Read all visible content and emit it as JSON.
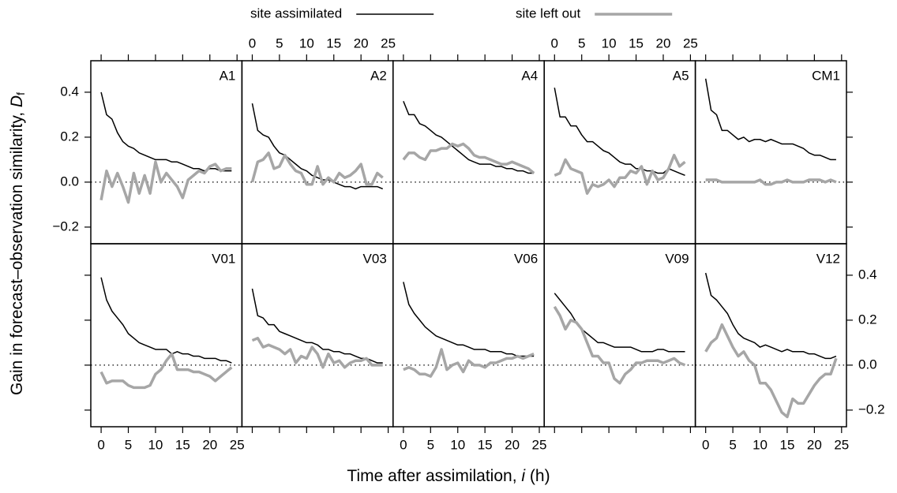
{
  "chart_data": {
    "type": "line",
    "series": [
      {
        "name": "site assimilated",
        "color": "#000000",
        "width": 1.5
      },
      {
        "name": "site left out",
        "color": "#a6a6a6",
        "width": 3.5
      }
    ],
    "xlabel": {
      "text": "Time after assimilation,",
      "var": "i",
      "unit": "(h)"
    },
    "ylabel": {
      "text": "Gain in forecast–observation similarity,",
      "var": "D",
      "sub": "f"
    },
    "x": [
      0,
      1,
      2,
      3,
      4,
      5,
      6,
      7,
      8,
      9,
      10,
      11,
      12,
      13,
      14,
      15,
      16,
      17,
      18,
      19,
      20,
      21,
      22,
      23,
      24
    ],
    "xlim": [
      -1.9,
      25.9
    ],
    "xticks": [
      0,
      5,
      10,
      15,
      20,
      25
    ],
    "ylim": [
      -0.274,
      0.54
    ],
    "yticks": [
      {
        "value": -0.2,
        "label": "−0.2"
      },
      {
        "value": 0,
        "label": "0.0"
      },
      0.2,
      0.4
    ],
    "panels": [
      {
        "title": "A1",
        "values": [
          [
            0.4,
            0.3,
            0.28,
            0.22,
            0.18,
            0.16,
            0.15,
            0.13,
            0.12,
            0.11,
            0.1,
            0.1,
            0.1,
            0.09,
            0.09,
            0.08,
            0.07,
            0.06,
            0.06,
            0.05,
            0.06,
            0.06,
            0.05,
            0.05,
            0.05
          ],
          [
            -0.08,
            0.05,
            -0.02,
            0.04,
            -0.02,
            -0.09,
            0.04,
            -0.05,
            0.03,
            -0.05,
            0.09,
            0.0,
            0.04,
            0.01,
            -0.02,
            -0.07,
            0.01,
            0.03,
            0.05,
            0.04,
            0.07,
            0.08,
            0.05,
            0.06,
            0.06
          ]
        ]
      },
      {
        "title": "A2",
        "values": [
          [
            0.35,
            0.23,
            0.21,
            0.2,
            0.16,
            0.13,
            0.12,
            0.1,
            0.08,
            0.06,
            0.05,
            0.03,
            0.02,
            0.01,
            0.01,
            0.0,
            -0.01,
            -0.02,
            -0.02,
            -0.03,
            -0.02,
            -0.02,
            -0.02,
            -0.02,
            -0.03
          ],
          [
            0.0,
            0.09,
            0.1,
            0.13,
            0.06,
            0.07,
            0.12,
            0.08,
            0.05,
            0.04,
            -0.01,
            -0.01,
            0.07,
            -0.01,
            0.02,
            0.0,
            0.04,
            0.02,
            0.03,
            0.05,
            0.08,
            -0.01,
            -0.01,
            0.04,
            0.02
          ]
        ]
      },
      {
        "title": "A4",
        "values": [
          [
            0.36,
            0.3,
            0.3,
            0.26,
            0.25,
            0.23,
            0.21,
            0.2,
            0.18,
            0.16,
            0.14,
            0.12,
            0.1,
            0.09,
            0.08,
            0.08,
            0.08,
            0.07,
            0.07,
            0.06,
            0.06,
            0.05,
            0.05,
            0.04,
            0.04
          ],
          [
            0.1,
            0.13,
            0.13,
            0.11,
            0.1,
            0.14,
            0.14,
            0.15,
            0.15,
            0.17,
            0.16,
            0.17,
            0.15,
            0.12,
            0.11,
            0.11,
            0.1,
            0.09,
            0.08,
            0.08,
            0.09,
            0.08,
            0.07,
            0.06,
            0.04
          ]
        ]
      },
      {
        "title": "A5",
        "values": [
          [
            0.42,
            0.29,
            0.29,
            0.25,
            0.25,
            0.21,
            0.18,
            0.18,
            0.16,
            0.14,
            0.13,
            0.11,
            0.09,
            0.08,
            0.08,
            0.06,
            0.06,
            0.05,
            0.05,
            0.04,
            0.04,
            0.06,
            0.05,
            0.04,
            0.03
          ],
          [
            0.03,
            0.04,
            0.1,
            0.06,
            0.05,
            0.04,
            -0.05,
            -0.01,
            -0.02,
            -0.01,
            0.01,
            -0.02,
            0.02,
            0.02,
            0.05,
            0.04,
            0.07,
            -0.01,
            0.05,
            0.01,
            0.02,
            0.06,
            0.12,
            0.07,
            0.09
          ]
        ]
      },
      {
        "title": "CM1",
        "values": [
          [
            0.46,
            0.32,
            0.3,
            0.23,
            0.23,
            0.21,
            0.19,
            0.2,
            0.18,
            0.19,
            0.19,
            0.18,
            0.19,
            0.18,
            0.17,
            0.17,
            0.17,
            0.16,
            0.15,
            0.13,
            0.12,
            0.12,
            0.11,
            0.1,
            0.1
          ],
          [
            0.01,
            0.01,
            0.01,
            0.0,
            0.0,
            0.0,
            0.0,
            0.0,
            0.0,
            0.0,
            0.01,
            -0.01,
            -0.01,
            0.0,
            0.0,
            0.01,
            0.0,
            0.0,
            0.0,
            0.01,
            0.01,
            0.01,
            0.0,
            0.01,
            0.0
          ]
        ]
      },
      {
        "title": "V01",
        "values": [
          [
            0.39,
            0.29,
            0.24,
            0.21,
            0.18,
            0.14,
            0.12,
            0.1,
            0.09,
            0.08,
            0.07,
            0.07,
            0.07,
            0.05,
            0.06,
            0.05,
            0.05,
            0.04,
            0.04,
            0.03,
            0.03,
            0.03,
            0.02,
            0.02,
            0.01
          ],
          [
            -0.03,
            -0.08,
            -0.07,
            -0.07,
            -0.07,
            -0.09,
            -0.1,
            -0.1,
            -0.1,
            -0.09,
            -0.04,
            -0.02,
            0.02,
            0.05,
            -0.02,
            -0.02,
            -0.02,
            -0.03,
            -0.03,
            -0.04,
            -0.05,
            -0.07,
            -0.05,
            -0.03,
            -0.01
          ]
        ]
      },
      {
        "title": "V03",
        "values": [
          [
            0.34,
            0.22,
            0.21,
            0.18,
            0.18,
            0.15,
            0.14,
            0.13,
            0.12,
            0.11,
            0.1,
            0.1,
            0.09,
            0.07,
            0.07,
            0.06,
            0.06,
            0.05,
            0.05,
            0.04,
            0.03,
            0.03,
            0.02,
            0.01,
            0.01
          ],
          [
            0.11,
            0.12,
            0.08,
            0.09,
            0.08,
            0.07,
            0.05,
            0.07,
            0.01,
            0.04,
            0.03,
            0.08,
            0.05,
            -0.01,
            0.05,
            0.01,
            0.02,
            -0.01,
            0.01,
            0.02,
            0.02,
            0.03,
            0.0,
            0.0,
            0.0
          ]
        ]
      },
      {
        "title": "V06",
        "values": [
          [
            0.37,
            0.27,
            0.23,
            0.2,
            0.17,
            0.15,
            0.13,
            0.12,
            0.11,
            0.1,
            0.09,
            0.09,
            0.08,
            0.07,
            0.07,
            0.07,
            0.06,
            0.06,
            0.06,
            0.05,
            0.05,
            0.04,
            0.04,
            0.04,
            0.04
          ],
          [
            -0.02,
            -0.01,
            -0.02,
            -0.04,
            -0.04,
            -0.05,
            -0.01,
            0.07,
            -0.02,
            0.0,
            0.01,
            -0.03,
            0.02,
            0.0,
            0.0,
            -0.01,
            0.01,
            0.01,
            0.02,
            0.03,
            0.03,
            0.04,
            0.03,
            0.04,
            0.05
          ]
        ]
      },
      {
        "title": "V09",
        "values": [
          [
            0.32,
            0.29,
            0.26,
            0.23,
            0.19,
            0.16,
            0.14,
            0.12,
            0.1,
            0.1,
            0.09,
            0.08,
            0.08,
            0.08,
            0.08,
            0.07,
            0.06,
            0.06,
            0.06,
            0.07,
            0.07,
            0.06,
            0.06,
            0.06,
            0.06
          ],
          [
            0.26,
            0.22,
            0.16,
            0.2,
            0.19,
            0.16,
            0.1,
            0.04,
            0.04,
            0.01,
            0.01,
            -0.06,
            -0.08,
            -0.04,
            -0.02,
            0.01,
            0.01,
            0.02,
            0.02,
            0.02,
            0.01,
            0.02,
            0.03,
            0.01,
            0.0
          ]
        ]
      },
      {
        "title": "V12",
        "values": [
          [
            0.41,
            0.31,
            0.29,
            0.26,
            0.23,
            0.18,
            0.14,
            0.12,
            0.11,
            0.1,
            0.08,
            0.09,
            0.08,
            0.07,
            0.06,
            0.07,
            0.06,
            0.06,
            0.06,
            0.05,
            0.05,
            0.04,
            0.03,
            0.03,
            0.04
          ],
          [
            0.06,
            0.1,
            0.12,
            0.18,
            0.13,
            0.08,
            0.04,
            0.06,
            0.02,
            0.0,
            -0.08,
            -0.08,
            -0.11,
            -0.16,
            -0.21,
            -0.23,
            -0.15,
            -0.17,
            -0.17,
            -0.13,
            -0.09,
            -0.06,
            -0.04,
            -0.04,
            0.03
          ]
        ]
      }
    ]
  }
}
